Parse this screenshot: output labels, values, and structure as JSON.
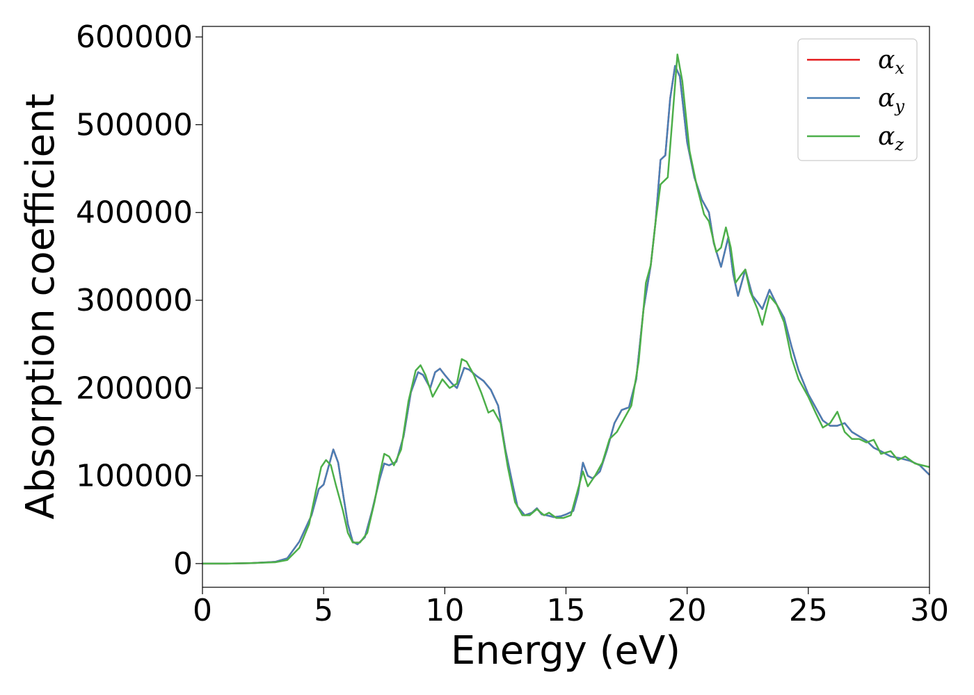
{
  "chart_data": {
    "type": "line",
    "xlabel": "Energy (eV)",
    "ylabel": "Absorption coefficient",
    "xlim": [
      0,
      30
    ],
    "ylim": [
      -27000,
      612000
    ],
    "x_ticks": [
      0,
      5,
      10,
      15,
      20,
      25,
      30
    ],
    "y_ticks": [
      0,
      100000,
      200000,
      300000,
      400000,
      500000,
      600000
    ],
    "x_tick_labels": [
      "0",
      "5",
      "10",
      "15",
      "20",
      "25",
      "30"
    ],
    "y_tick_labels": [
      "0",
      "100000",
      "200000",
      "300000",
      "400000",
      "500000",
      "600000"
    ],
    "grid": false,
    "legend_position": "top-right",
    "series": [
      {
        "name": "α",
        "subscript": "x",
        "color": "#e41a1c",
        "points": [
          [
            0,
            0
          ],
          [
            1,
            0
          ],
          [
            2,
            500
          ],
          [
            3,
            2000
          ],
          [
            3.5,
            6000
          ],
          [
            4,
            25000
          ],
          [
            4.5,
            55000
          ],
          [
            4.8,
            85000
          ],
          [
            5.0,
            90000
          ],
          [
            5.2,
            110000
          ],
          [
            5.4,
            130000
          ],
          [
            5.6,
            115000
          ],
          [
            5.8,
            80000
          ],
          [
            6.0,
            45000
          ],
          [
            6.2,
            25000
          ],
          [
            6.4,
            22000
          ],
          [
            6.7,
            30000
          ],
          [
            7.0,
            60000
          ],
          [
            7.3,
            95000
          ],
          [
            7.5,
            114000
          ],
          [
            7.7,
            112000
          ],
          [
            8.0,
            116000
          ],
          [
            8.3,
            145000
          ],
          [
            8.6,
            195000
          ],
          [
            8.9,
            218000
          ],
          [
            9.1,
            215000
          ],
          [
            9.4,
            200000
          ],
          [
            9.6,
            218000
          ],
          [
            9.8,
            222000
          ],
          [
            10.0,
            215000
          ],
          [
            10.3,
            205000
          ],
          [
            10.5,
            200000
          ],
          [
            10.8,
            223000
          ],
          [
            11.0,
            221000
          ],
          [
            11.3,
            214000
          ],
          [
            11.6,
            208000
          ],
          [
            11.9,
            198000
          ],
          [
            12.2,
            180000
          ],
          [
            12.5,
            130000
          ],
          [
            12.8,
            90000
          ],
          [
            13.0,
            65000
          ],
          [
            13.3,
            55000
          ],
          [
            13.6,
            58000
          ],
          [
            13.8,
            63000
          ],
          [
            14.0,
            56000
          ],
          [
            14.2,
            55000
          ],
          [
            14.5,
            53000
          ],
          [
            14.8,
            54000
          ],
          [
            15.0,
            56000
          ],
          [
            15.3,
            60000
          ],
          [
            15.5,
            80000
          ],
          [
            15.7,
            115000
          ],
          [
            15.9,
            100000
          ],
          [
            16.1,
            97000
          ],
          [
            16.4,
            105000
          ],
          [
            16.7,
            130000
          ],
          [
            17.0,
            160000
          ],
          [
            17.3,
            175000
          ],
          [
            17.6,
            178000
          ],
          [
            17.9,
            210000
          ],
          [
            18.2,
            290000
          ],
          [
            18.5,
            340000
          ],
          [
            18.7,
            390000
          ],
          [
            18.9,
            460000
          ],
          [
            19.1,
            465000
          ],
          [
            19.3,
            530000
          ],
          [
            19.5,
            567000
          ],
          [
            19.7,
            555000
          ],
          [
            20.0,
            480000
          ],
          [
            20.3,
            440000
          ],
          [
            20.6,
            415000
          ],
          [
            20.9,
            400000
          ],
          [
            21.1,
            365000
          ],
          [
            21.4,
            338000
          ],
          [
            21.7,
            372000
          ],
          [
            21.9,
            330000
          ],
          [
            22.1,
            305000
          ],
          [
            22.4,
            335000
          ],
          [
            22.7,
            305000
          ],
          [
            22.9,
            298000
          ],
          [
            23.1,
            290000
          ],
          [
            23.4,
            312000
          ],
          [
            23.7,
            295000
          ],
          [
            24.0,
            280000
          ],
          [
            24.3,
            248000
          ],
          [
            24.6,
            220000
          ],
          [
            25.0,
            193000
          ],
          [
            25.3,
            178000
          ],
          [
            25.6,
            163000
          ],
          [
            25.9,
            157000
          ],
          [
            26.2,
            157000
          ],
          [
            26.5,
            160000
          ],
          [
            26.8,
            150000
          ],
          [
            27.1,
            145000
          ],
          [
            27.4,
            140000
          ],
          [
            27.7,
            132000
          ],
          [
            28.0,
            128000
          ],
          [
            28.4,
            122000
          ],
          [
            28.8,
            120000
          ],
          [
            29.2,
            117000
          ],
          [
            29.6,
            112000
          ],
          [
            30,
            101000
          ]
        ]
      },
      {
        "name": "α",
        "subscript": "y",
        "color": "#4a7fb5",
        "points": [
          [
            0,
            0
          ],
          [
            1,
            0
          ],
          [
            2,
            500
          ],
          [
            3,
            2000
          ],
          [
            3.5,
            6000
          ],
          [
            4,
            25000
          ],
          [
            4.5,
            55000
          ],
          [
            4.8,
            85000
          ],
          [
            5.0,
            90000
          ],
          [
            5.2,
            110000
          ],
          [
            5.4,
            130000
          ],
          [
            5.6,
            115000
          ],
          [
            5.8,
            80000
          ],
          [
            6.0,
            45000
          ],
          [
            6.2,
            25000
          ],
          [
            6.4,
            22000
          ],
          [
            6.7,
            30000
          ],
          [
            7.0,
            60000
          ],
          [
            7.3,
            95000
          ],
          [
            7.5,
            114000
          ],
          [
            7.7,
            112000
          ],
          [
            8.0,
            116000
          ],
          [
            8.3,
            145000
          ],
          [
            8.6,
            195000
          ],
          [
            8.9,
            218000
          ],
          [
            9.1,
            215000
          ],
          [
            9.4,
            200000
          ],
          [
            9.6,
            218000
          ],
          [
            9.8,
            222000
          ],
          [
            10.0,
            215000
          ],
          [
            10.3,
            205000
          ],
          [
            10.5,
            200000
          ],
          [
            10.8,
            223000
          ],
          [
            11.0,
            221000
          ],
          [
            11.3,
            214000
          ],
          [
            11.6,
            208000
          ],
          [
            11.9,
            198000
          ],
          [
            12.2,
            180000
          ],
          [
            12.5,
            130000
          ],
          [
            12.8,
            90000
          ],
          [
            13.0,
            65000
          ],
          [
            13.3,
            55000
          ],
          [
            13.6,
            58000
          ],
          [
            13.8,
            63000
          ],
          [
            14.0,
            56000
          ],
          [
            14.2,
            55000
          ],
          [
            14.5,
            53000
          ],
          [
            14.8,
            54000
          ],
          [
            15.0,
            56000
          ],
          [
            15.3,
            60000
          ],
          [
            15.5,
            80000
          ],
          [
            15.7,
            115000
          ],
          [
            15.9,
            100000
          ],
          [
            16.1,
            97000
          ],
          [
            16.4,
            105000
          ],
          [
            16.7,
            130000
          ],
          [
            17.0,
            160000
          ],
          [
            17.3,
            175000
          ],
          [
            17.6,
            178000
          ],
          [
            17.9,
            210000
          ],
          [
            18.2,
            290000
          ],
          [
            18.5,
            340000
          ],
          [
            18.7,
            390000
          ],
          [
            18.9,
            460000
          ],
          [
            19.1,
            465000
          ],
          [
            19.3,
            530000
          ],
          [
            19.5,
            567000
          ],
          [
            19.7,
            555000
          ],
          [
            20.0,
            480000
          ],
          [
            20.3,
            440000
          ],
          [
            20.6,
            415000
          ],
          [
            20.9,
            400000
          ],
          [
            21.1,
            365000
          ],
          [
            21.4,
            338000
          ],
          [
            21.7,
            372000
          ],
          [
            21.9,
            330000
          ],
          [
            22.1,
            305000
          ],
          [
            22.4,
            335000
          ],
          [
            22.7,
            305000
          ],
          [
            22.9,
            298000
          ],
          [
            23.1,
            290000
          ],
          [
            23.4,
            312000
          ],
          [
            23.7,
            295000
          ],
          [
            24.0,
            280000
          ],
          [
            24.3,
            248000
          ],
          [
            24.6,
            220000
          ],
          [
            25.0,
            193000
          ],
          [
            25.3,
            178000
          ],
          [
            25.6,
            163000
          ],
          [
            25.9,
            157000
          ],
          [
            26.2,
            157000
          ],
          [
            26.5,
            160000
          ],
          [
            26.8,
            150000
          ],
          [
            27.1,
            145000
          ],
          [
            27.4,
            140000
          ],
          [
            27.7,
            132000
          ],
          [
            28.0,
            128000
          ],
          [
            28.4,
            122000
          ],
          [
            28.8,
            120000
          ],
          [
            29.2,
            117000
          ],
          [
            29.6,
            112000
          ],
          [
            30,
            101000
          ]
        ]
      },
      {
        "name": "α",
        "subscript": "z",
        "color": "#4daf4a",
        "points": [
          [
            0,
            0
          ],
          [
            1,
            0
          ],
          [
            2,
            500
          ],
          [
            3,
            1500
          ],
          [
            3.5,
            4000
          ],
          [
            4,
            18000
          ],
          [
            4.4,
            45000
          ],
          [
            4.7,
            85000
          ],
          [
            4.9,
            110000
          ],
          [
            5.1,
            118000
          ],
          [
            5.3,
            112000
          ],
          [
            5.5,
            90000
          ],
          [
            5.8,
            60000
          ],
          [
            6.0,
            35000
          ],
          [
            6.2,
            24000
          ],
          [
            6.5,
            24000
          ],
          [
            6.8,
            35000
          ],
          [
            7.1,
            70000
          ],
          [
            7.3,
            100000
          ],
          [
            7.5,
            125000
          ],
          [
            7.7,
            122000
          ],
          [
            7.9,
            112000
          ],
          [
            8.2,
            130000
          ],
          [
            8.5,
            185000
          ],
          [
            8.8,
            220000
          ],
          [
            9.0,
            226000
          ],
          [
            9.2,
            215000
          ],
          [
            9.5,
            190000
          ],
          [
            9.7,
            200000
          ],
          [
            9.9,
            210000
          ],
          [
            10.2,
            200000
          ],
          [
            10.5,
            205000
          ],
          [
            10.7,
            233000
          ],
          [
            10.9,
            230000
          ],
          [
            11.2,
            215000
          ],
          [
            11.5,
            195000
          ],
          [
            11.8,
            172000
          ],
          [
            12.0,
            175000
          ],
          [
            12.3,
            160000
          ],
          [
            12.6,
            110000
          ],
          [
            12.9,
            70000
          ],
          [
            13.2,
            55000
          ],
          [
            13.5,
            55000
          ],
          [
            13.8,
            62000
          ],
          [
            14.1,
            55000
          ],
          [
            14.3,
            58000
          ],
          [
            14.6,
            52000
          ],
          [
            14.9,
            52000
          ],
          [
            15.2,
            55000
          ],
          [
            15.5,
            85000
          ],
          [
            15.7,
            105000
          ],
          [
            15.9,
            88000
          ],
          [
            16.2,
            100000
          ],
          [
            16.5,
            115000
          ],
          [
            16.8,
            142000
          ],
          [
            17.1,
            150000
          ],
          [
            17.4,
            165000
          ],
          [
            17.7,
            180000
          ],
          [
            18.0,
            230000
          ],
          [
            18.3,
            320000
          ],
          [
            18.5,
            340000
          ],
          [
            18.7,
            390000
          ],
          [
            18.9,
            432000
          ],
          [
            19.2,
            440000
          ],
          [
            19.4,
            510000
          ],
          [
            19.6,
            580000
          ],
          [
            19.8,
            550000
          ],
          [
            20.1,
            470000
          ],
          [
            20.4,
            430000
          ],
          [
            20.7,
            398000
          ],
          [
            20.9,
            390000
          ],
          [
            21.2,
            355000
          ],
          [
            21.4,
            360000
          ],
          [
            21.6,
            383000
          ],
          [
            21.8,
            360000
          ],
          [
            22.0,
            320000
          ],
          [
            22.2,
            328000
          ],
          [
            22.4,
            335000
          ],
          [
            22.6,
            310000
          ],
          [
            22.9,
            290000
          ],
          [
            23.1,
            272000
          ],
          [
            23.4,
            305000
          ],
          [
            23.7,
            295000
          ],
          [
            24.0,
            275000
          ],
          [
            24.3,
            235000
          ],
          [
            24.6,
            210000
          ],
          [
            25.0,
            190000
          ],
          [
            25.3,
            172000
          ],
          [
            25.6,
            155000
          ],
          [
            25.9,
            160000
          ],
          [
            26.2,
            173000
          ],
          [
            26.5,
            150000
          ],
          [
            26.8,
            142000
          ],
          [
            27.1,
            142000
          ],
          [
            27.4,
            138000
          ],
          [
            27.7,
            141000
          ],
          [
            28.0,
            125000
          ],
          [
            28.4,
            128000
          ],
          [
            28.7,
            118000
          ],
          [
            29.0,
            122000
          ],
          [
            29.4,
            114000
          ],
          [
            29.7,
            112000
          ],
          [
            30,
            110000
          ]
        ]
      }
    ]
  }
}
